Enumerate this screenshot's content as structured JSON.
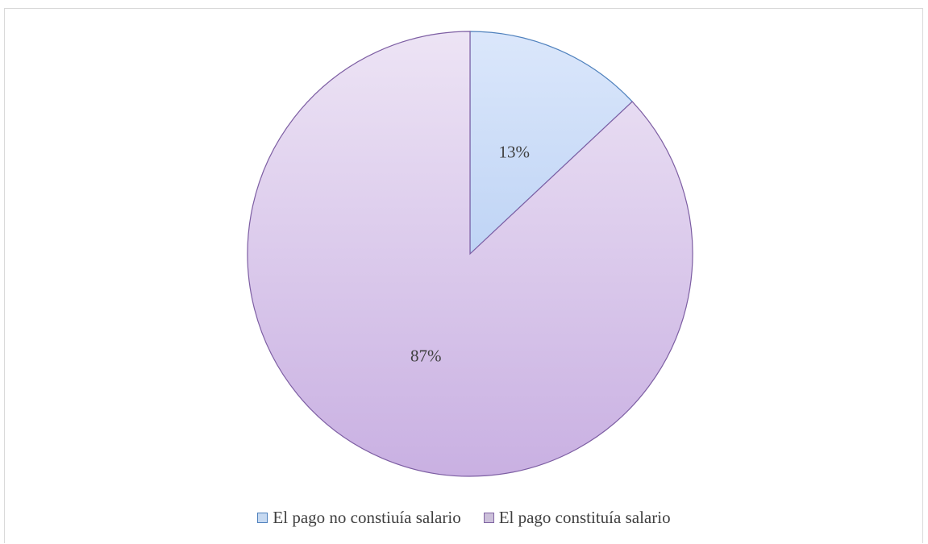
{
  "chart_data": {
    "type": "pie",
    "categories": [
      "El pago no constiuía salario",
      "El pago constituía salario"
    ],
    "values": [
      13,
      87
    ],
    "data_labels": [
      "13%",
      "87%"
    ],
    "legend_position": "bottom",
    "colors": {
      "slice_fills": [
        [
          "#dbe7fb",
          "#bfd4f5"
        ],
        [
          "#ede4f5",
          "#c9b0e2"
        ]
      ],
      "slice_stroke": [
        "#4f81bd",
        "#7d5ea3"
      ],
      "legend_fill": [
        "#c6d9f1",
        "#ccc0da"
      ],
      "legend_stroke": [
        "#4f81bd",
        "#8064a2"
      ]
    }
  }
}
